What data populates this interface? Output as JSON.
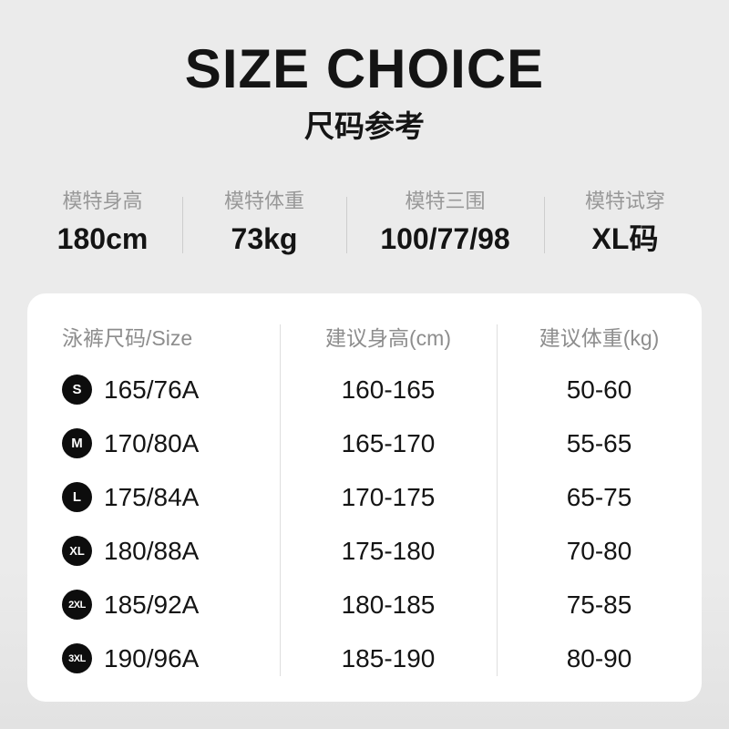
{
  "header": {
    "title": "SIZE CHOICE",
    "subtitle": "尺码参考"
  },
  "model_stats": [
    {
      "label": "模特身高",
      "value": "180cm"
    },
    {
      "label": "模特体重",
      "value": "73kg"
    },
    {
      "label": "模特三围",
      "value": "100/77/98"
    },
    {
      "label": "模特试穿",
      "value": "XL码"
    }
  ],
  "size_table": {
    "headers": [
      "泳裤尺码/Size",
      "建议身高(cm)",
      "建议体重(kg)"
    ],
    "rows": [
      {
        "badge": "S",
        "size": "165/76A",
        "height": "160-165",
        "weight": "50-60"
      },
      {
        "badge": "M",
        "size": "170/80A",
        "height": "165-170",
        "weight": "55-65"
      },
      {
        "badge": "L",
        "size": "175/84A",
        "height": "170-175",
        "weight": "65-75"
      },
      {
        "badge": "XL",
        "size": "180/88A",
        "height": "175-180",
        "weight": "70-80"
      },
      {
        "badge": "2XL",
        "size": "185/92A",
        "height": "180-185",
        "weight": "75-85"
      },
      {
        "badge": "3XL",
        "size": "190/96A",
        "height": "185-190",
        "weight": "80-90"
      }
    ]
  },
  "colors": {
    "background_top": "#ebebeb",
    "background_bottom": "#e2e2e2",
    "card": "#ffffff",
    "text_primary": "#141414",
    "text_muted": "#989898",
    "header_muted": "#8d8d8d",
    "badge_bg": "#0d0d0d",
    "badge_text": "#ffffff",
    "divider_stats": "#cdcdcd",
    "divider_table": "#dedede"
  }
}
